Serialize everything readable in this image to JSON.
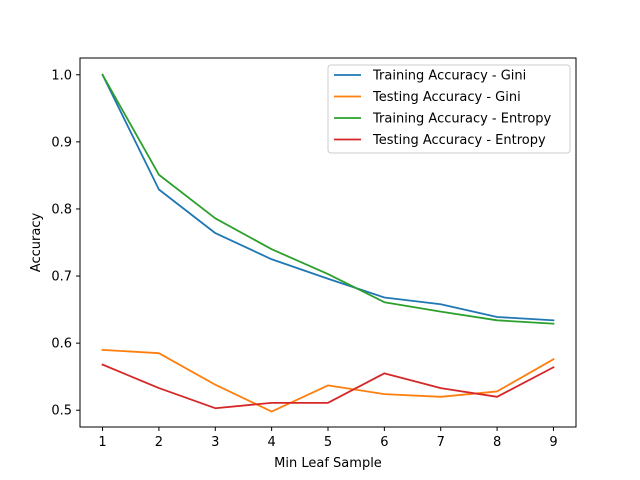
{
  "chart_data": {
    "type": "line",
    "title": "",
    "xlabel": "Min Leaf Sample",
    "ylabel": "Accuracy",
    "x": [
      1,
      2,
      3,
      4,
      5,
      6,
      7,
      8,
      9
    ],
    "xlim": [
      0.6,
      9.4
    ],
    "ylim": [
      0.475,
      1.025
    ],
    "xticks": [
      "1",
      "2",
      "3",
      "4",
      "5",
      "6",
      "7",
      "8",
      "9"
    ],
    "yticks": [
      "0.5",
      "0.6",
      "0.7",
      "0.8",
      "0.9",
      "1.0"
    ],
    "grid": false,
    "legend_position": "top-right",
    "series": [
      {
        "name": "Training Accuracy - Gini",
        "color": "#1f77b4",
        "values": [
          1.0,
          0.829,
          0.764,
          0.725,
          0.696,
          0.668,
          0.658,
          0.639,
          0.634
        ]
      },
      {
        "name": "Testing Accuracy - Gini",
        "color": "#ff7f0e",
        "values": [
          0.59,
          0.585,
          0.538,
          0.498,
          0.537,
          0.524,
          0.52,
          0.528,
          0.576
        ]
      },
      {
        "name": "Training Accuracy - Entropy",
        "color": "#2ca02c",
        "values": [
          1.0,
          0.851,
          0.786,
          0.74,
          0.703,
          0.661,
          0.647,
          0.634,
          0.629
        ]
      },
      {
        "name": "Testing Accuracy - Entropy",
        "color": "#d62728",
        "values": [
          0.568,
          0.533,
          0.503,
          0.511,
          0.511,
          0.555,
          0.533,
          0.52,
          0.564
        ]
      }
    ]
  }
}
